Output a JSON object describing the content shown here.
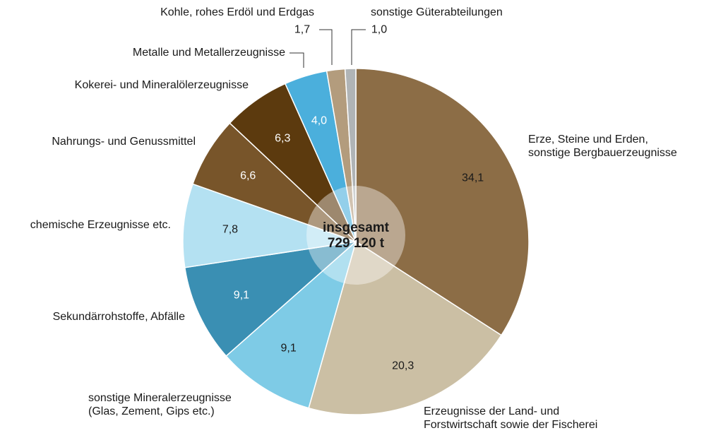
{
  "chart_data": {
    "type": "pie",
    "categories": [
      "Erze, Steine und Erden,\nsonstige Bergbauerzeugnisse",
      "Erzeugnisse der Land- und\nForstwirtschaft sowie der Fischerei",
      "sonstige Mineralerzeugnisse\n(Glas, Zement, Gips etc.)",
      "Sekundärrohstoffe, Abfälle",
      "chemische Erzeugnisse etc.",
      "Nahrungs- und Genussmittel",
      "Kokerei- und Mineralölerzeugnisse",
      "Metalle und Metallerzeugnisse",
      "Kohle, rohes Erdöl und Erdgas",
      "sonstige Güterabteilungen"
    ],
    "values": [
      34.1,
      20.3,
      9.1,
      9.1,
      7.8,
      6.6,
      6.3,
      4.0,
      1.7,
      1.0
    ],
    "value_labels": [
      "34,1",
      "20,3",
      "9,1",
      "9,1",
      "7,8",
      "6,6",
      "6,3",
      "4,0",
      "1,7",
      "1,0"
    ],
    "colors": [
      "#8c6d46",
      "#cbbfa4",
      "#7ecbe6",
      "#3a8fb3",
      "#b4e1f2",
      "#78552a",
      "#5c3a0e",
      "#4bafdc",
      "#b39c7d",
      "#b0b4b6"
    ],
    "center_label": [
      "insgesamt",
      "729 120 t"
    ]
  }
}
